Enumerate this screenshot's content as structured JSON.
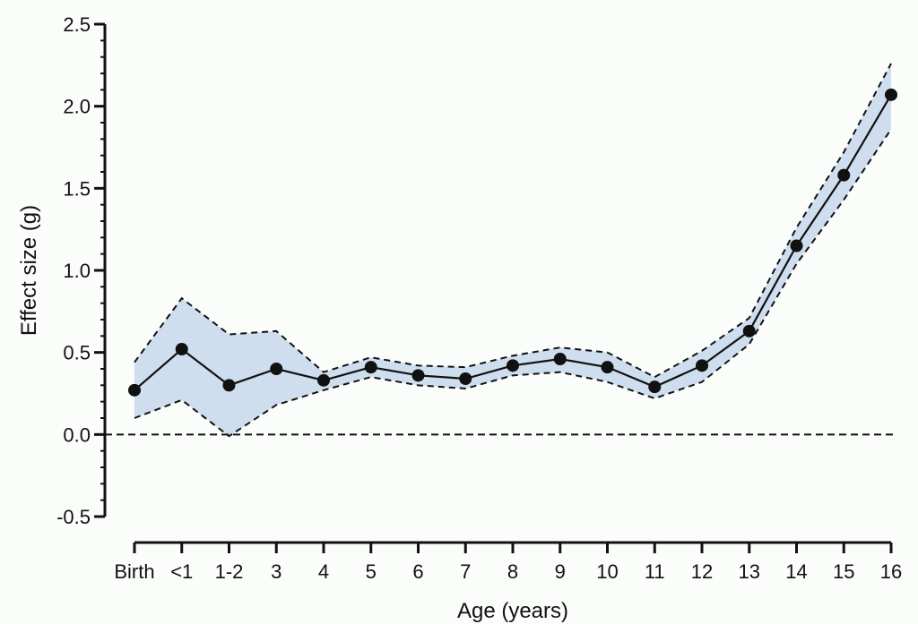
{
  "chart_data": {
    "type": "line",
    "title": "",
    "xlabel": "Age (years)",
    "ylabel": "Effect size (g)",
    "categories": [
      "Birth",
      "<1",
      "1-2",
      "3",
      "4",
      "5",
      "6",
      "7",
      "8",
      "9",
      "10",
      "11",
      "12",
      "13",
      "14",
      "15",
      "16"
    ],
    "ylim": [
      -0.5,
      2.5
    ],
    "yticks": [
      -0.5,
      0.0,
      0.5,
      1.0,
      1.5,
      2.0,
      2.5
    ],
    "ytick_labels": [
      "-0.5",
      "0.0",
      "0.5",
      "1.0",
      "1.5",
      "2.0",
      "2.5"
    ],
    "reference_line": 0,
    "grid": false,
    "series": [
      {
        "values": [
          0.27,
          0.52,
          0.3,
          0.4,
          0.33,
          0.41,
          0.36,
          0.34,
          0.42,
          0.46,
          0.41,
          0.29,
          0.42,
          0.63,
          1.15,
          1.58,
          2.07
        ],
        "lower": [
          0.1,
          0.21,
          -0.01,
          0.18,
          0.27,
          0.35,
          0.3,
          0.28,
          0.36,
          0.38,
          0.32,
          0.22,
          0.32,
          0.55,
          1.04,
          1.43,
          1.86
        ],
        "upper": [
          0.44,
          0.83,
          0.61,
          0.63,
          0.38,
          0.47,
          0.42,
          0.41,
          0.48,
          0.53,
          0.5,
          0.35,
          0.51,
          0.71,
          1.26,
          1.72,
          2.26
        ]
      }
    ],
    "colors": {
      "band": "#cfdeee",
      "line": "#111111",
      "marker": "#111111"
    }
  }
}
